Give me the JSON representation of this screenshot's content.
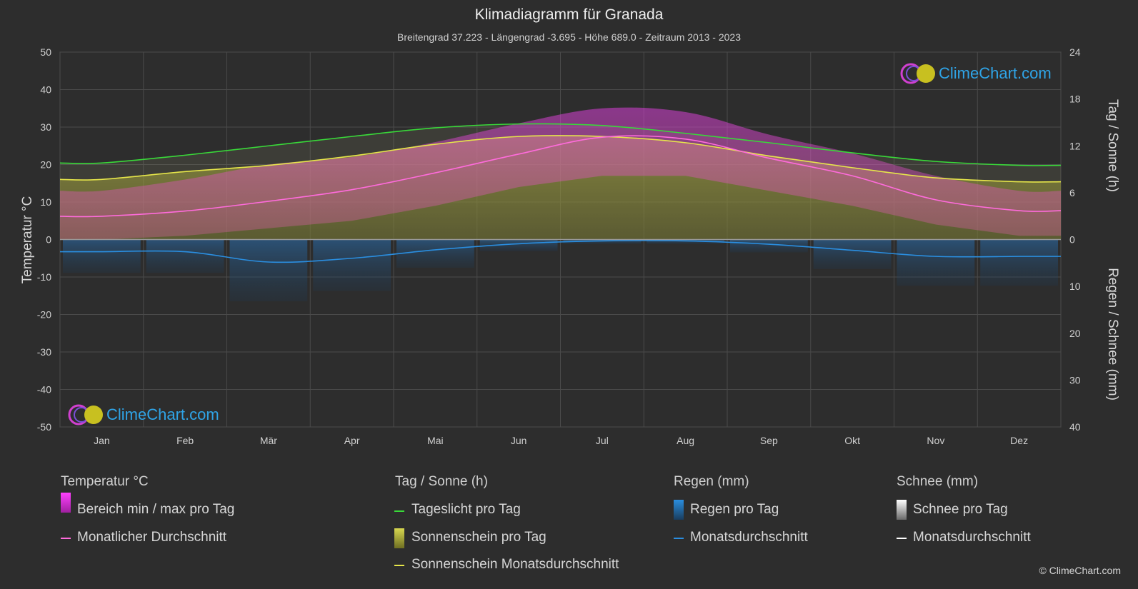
{
  "title": "Klimadiagramm für Granada",
  "subtitle": "Breitengrad 37.223 - Längengrad -3.695 - Höhe 689.0 - Zeitraum 2013 - 2023",
  "brand_top": "ClimeChart.com",
  "brand_bottom": "ClimeChart.com",
  "copyright": "© ClimeChart.com",
  "legend": {
    "temp_head": "Temperatur °C",
    "temp_range": "Bereich min / max pro Tag",
    "temp_avg": "Monatlicher Durchschnitt",
    "sun_head": "Tag / Sonne (h)",
    "daylight": "Tageslicht pro Tag",
    "sunshine": "Sonnenschein pro Tag",
    "sunshine_avg": "Sonnenschein Monatsdurchschnitt",
    "rain_head": "Regen (mm)",
    "rain_day": "Regen pro Tag",
    "rain_avg": "Monatsdurchschnitt",
    "snow_head": "Schnee (mm)",
    "snow_day": "Schnee pro Tag",
    "snow_avg": "Monatsdurchschnitt"
  },
  "colors": {
    "daylight": "#39d939",
    "sunshine_avg": "#e6e64a",
    "temp_avg": "#ff6bdc",
    "rain_avg": "#2a8ee0",
    "temp_range": "#e040e0",
    "sunshine_fill": "#a6a62c",
    "rain_fill": "#1f5f9a",
    "snow_avg": "#ffffff"
  },
  "chart_data": {
    "type": "area",
    "categories": [
      "Jan",
      "Feb",
      "Mär",
      "Apr",
      "Mai",
      "Jun",
      "Jul",
      "Aug",
      "Sep",
      "Okt",
      "Nov",
      "Dez"
    ],
    "ylabel_left": "Temperatur °C",
    "ylabel_right_top": "Tag / Sonne (h)",
    "ylabel_right_bottom": "Regen / Schnee (mm)",
    "left_ticks": [
      "50",
      "40",
      "30",
      "20",
      "10",
      "0",
      "-10",
      "-20",
      "-30",
      "-40",
      "-50"
    ],
    "right_top_ticks": [
      "24",
      "18",
      "12",
      "6",
      "0"
    ],
    "right_bottom_ticks": [
      "10",
      "20",
      "30",
      "40"
    ],
    "ylim_temp": [
      -50,
      50
    ],
    "ylim_sun_hours": [
      0,
      24
    ],
    "ylim_precip_mm": [
      0,
      40
    ],
    "grid": true,
    "series": [
      {
        "name": "Tageslicht pro Tag",
        "axis": "hours",
        "values": [
          9.8,
          10.8,
          12.0,
          13.2,
          14.3,
          14.8,
          14.6,
          13.6,
          12.4,
          11.1,
          10.0,
          9.5
        ]
      },
      {
        "name": "Sonnenschein Monatsdurchschnitt",
        "axis": "hours",
        "values": [
          7.7,
          8.7,
          9.5,
          10.7,
          12.2,
          13.2,
          13.2,
          12.4,
          10.7,
          9.2,
          7.9,
          7.4
        ]
      },
      {
        "name": "Monatlicher Durchschnitt",
        "axis": "temp",
        "values": [
          6.2,
          7.6,
          10.2,
          13.3,
          17.8,
          22.8,
          27.3,
          26.8,
          21.7,
          17.0,
          10.6,
          7.7
        ]
      },
      {
        "name": "Bereich min / max pro Tag (max)",
        "axis": "temp",
        "values": [
          13,
          16,
          20,
          22,
          26,
          31,
          35,
          34,
          28,
          23,
          17,
          13
        ]
      },
      {
        "name": "Bereich min / max pro Tag (min)",
        "axis": "temp",
        "values": [
          0,
          1,
          3,
          5,
          9,
          14,
          17,
          17,
          13,
          9,
          4,
          1
        ]
      },
      {
        "name": "Monatsdurchschnitt (Regen)",
        "axis": "precip",
        "values": [
          2.6,
          2.6,
          4.8,
          4.0,
          2.2,
          0.9,
          0.3,
          0.3,
          1.0,
          2.3,
          3.6,
          3.6
        ]
      },
      {
        "name": "Monatsdurchschnitt (Schnee)",
        "axis": "precip",
        "values": [
          0,
          0,
          0,
          0,
          0,
          0,
          0,
          0,
          0,
          0,
          0,
          0
        ]
      }
    ]
  }
}
